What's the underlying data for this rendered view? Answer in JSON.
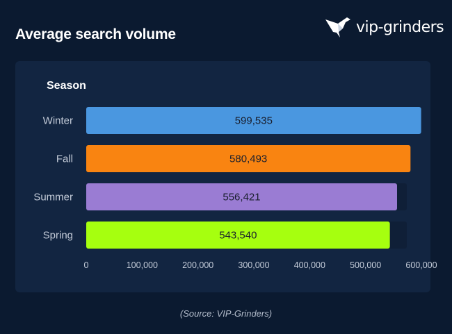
{
  "title": "Average search volume",
  "brand": {
    "name": "vip-grinders",
    "icon": "hummingbird-logo-icon"
  },
  "source": "(Source: VIP-Grinders)",
  "chart_data": {
    "type": "bar",
    "orientation": "horizontal",
    "axis_title": "Season",
    "categories": [
      "Winter",
      "Fall",
      "Summer",
      "Spring"
    ],
    "values": [
      599535,
      580493,
      556421,
      543540
    ],
    "value_labels": [
      "599,535",
      "580,493",
      "556,421",
      "543,540"
    ],
    "colors": [
      "#4a97e0",
      "#f98411",
      "#9a7cd3",
      "#a6ff0f"
    ],
    "xlim": [
      0,
      600000
    ],
    "x_ticks": [
      0,
      100000,
      200000,
      300000,
      400000,
      500000,
      600000
    ],
    "x_tick_labels": [
      "0",
      "100,000",
      "200,000",
      "300,000",
      "400,000",
      "500,000",
      "600,000"
    ],
    "track_color": "#0f1f37",
    "grid": false,
    "legend": "none"
  }
}
